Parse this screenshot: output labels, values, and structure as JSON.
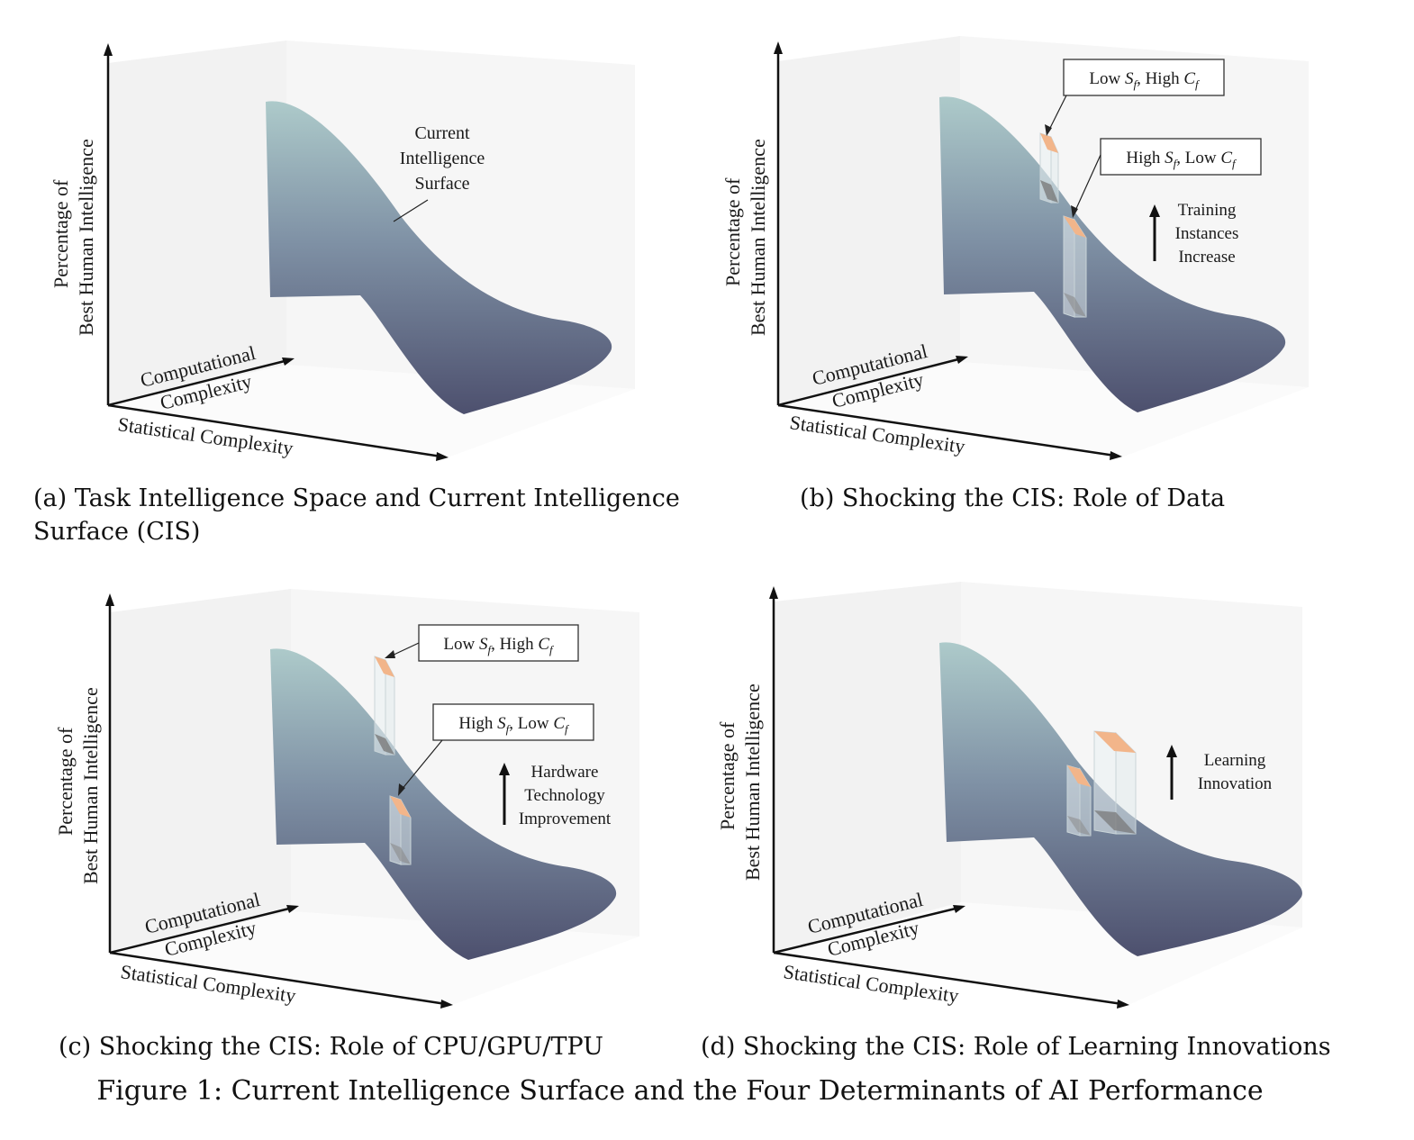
{
  "figure": {
    "caption": "Figure 1: Current Intelligence Surface and the Four Determinants of AI Performance"
  },
  "axes": {
    "y_label_line1": "Percentage of",
    "y_label_line2": "Best Human Intelligence",
    "x_label_line1": "Computational",
    "x_label_line2": "Complexity",
    "z_label": "Statistical Complexity"
  },
  "panels": [
    {
      "id": "a",
      "caption_line1": "(a) Task Intelligence Space and Current Intelligence",
      "caption_line2": "Surface (CIS)",
      "surface_label": [
        "Current",
        "Intelligence",
        "Surface"
      ]
    },
    {
      "id": "b",
      "caption": "(b) Shocking the CIS: Role of Data",
      "box1": {
        "pre1": "Low ",
        "sub1": "f",
        "mid": ", High ",
        "sub2": "f"
      },
      "box2": {
        "pre1": "High ",
        "sub1": "f",
        "mid": ", Low ",
        "sub2": "f"
      },
      "shock_label": [
        "Training",
        "Instances",
        "Increase"
      ]
    },
    {
      "id": "c",
      "caption": "(c) Shocking the CIS: Role of CPU/GPU/TPU",
      "box1": {
        "pre1": "Low ",
        "sub1": "f",
        "mid": ", High ",
        "sub2": "f"
      },
      "box2": {
        "pre1": "High ",
        "sub1": "f",
        "mid": ", Low ",
        "sub2": "f"
      },
      "shock_label": [
        "Hardware",
        "Technology",
        "Improvement"
      ]
    },
    {
      "id": "d",
      "caption": "(d) Shocking the CIS: Role of Learning Innovations",
      "shock_label": [
        "Learning",
        "Innovation"
      ]
    }
  ],
  "symbols": {
    "S": "S",
    "C": "C"
  },
  "colors": {
    "surface_top": "#a9c7c7",
    "surface_mid": "#7d8ea3",
    "surface_bottom": "#4e5270",
    "pane": "#f3f3f3",
    "box_top": "#f2b58a"
  }
}
